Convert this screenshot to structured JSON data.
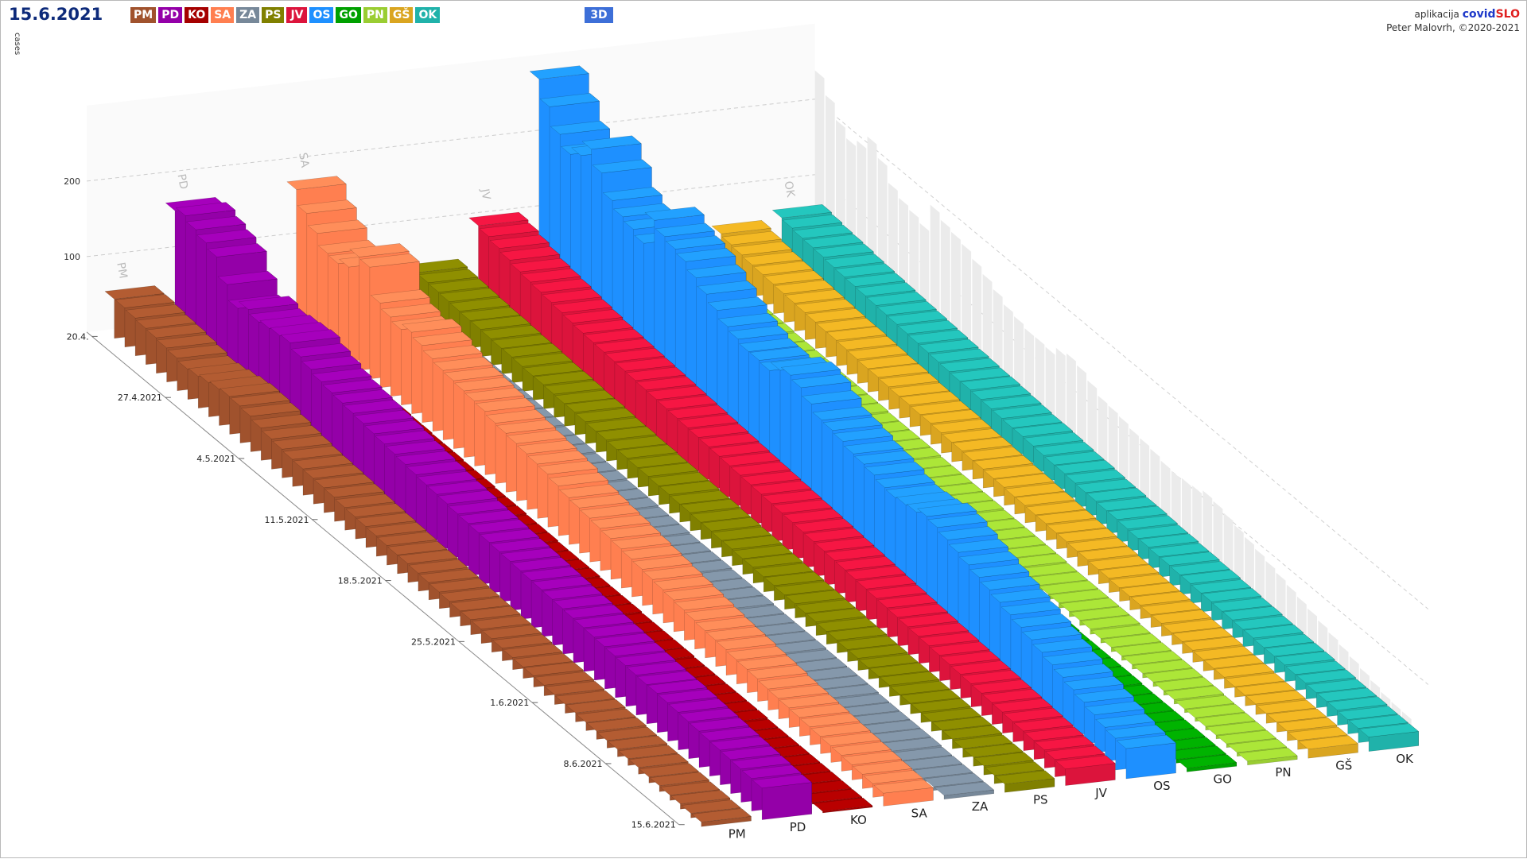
{
  "header": {
    "date": "15.6.2021",
    "view_toggle": "3D",
    "credit_prefix": "aplikacija",
    "credit_brand_a": "covid",
    "credit_brand_b": "SLO",
    "credit_author": "Peter Malovrh, ©2020-2021"
  },
  "legend": [
    {
      "code": "PM",
      "color": "#a0522d"
    },
    {
      "code": "PD",
      "color": "#9400a8"
    },
    {
      "code": "KO",
      "color": "#a50000"
    },
    {
      "code": "SA",
      "color": "#ff7f50"
    },
    {
      "code": "ZA",
      "color": "#778899"
    },
    {
      "code": "PS",
      "color": "#808000"
    },
    {
      "code": "JV",
      "color": "#dc143c"
    },
    {
      "code": "OS",
      "color": "#1e90ff"
    },
    {
      "code": "GO",
      "color": "#00a000"
    },
    {
      "code": "PN",
      "color": "#9acd32"
    },
    {
      "code": "GŠ",
      "color": "#daa520"
    },
    {
      "code": "OK",
      "color": "#20b2aa"
    }
  ],
  "chart_data": {
    "type": "bar3d",
    "ylabel": "cases",
    "yticks": [
      100,
      200
    ],
    "date_labels": [
      "20.4.",
      "27.4.2021",
      "4.5.2021",
      "11.5.2021",
      "18.5.2021",
      "25.5.2021",
      "1.6.2021",
      "8.6.2021",
      "15.6.2021"
    ],
    "start_date": "20.4.2021",
    "end_date": "15.6.2021",
    "days": 57,
    "back_labels": [
      "PM",
      "PD",
      "SA",
      "JV",
      "OK"
    ],
    "series": [
      {
        "name": "PM",
        "values": [
          52,
          52,
          50,
          48,
          47,
          45,
          43,
          40,
          42,
          45,
          48,
          50,
          49,
          47,
          43,
          40,
          38,
          36,
          35,
          34,
          33,
          32,
          30,
          29,
          28,
          27,
          26,
          25,
          25,
          24,
          23,
          22,
          21,
          20,
          20,
          19,
          18,
          17,
          16,
          15,
          15,
          14,
          13,
          12,
          12,
          11,
          11,
          10,
          10,
          9,
          9,
          8,
          8,
          7,
          7,
          6,
          6
        ]
      },
      {
        "name": "PD",
        "values": [
          160,
          165,
          158,
          152,
          145,
          120,
          100,
          110,
          105,
          108,
          110,
          112,
          105,
          100,
          95,
          92,
          90,
          88,
          86,
          84,
          82,
          80,
          78,
          76,
          74,
          73,
          72,
          70,
          69,
          68,
          67,
          66,
          65,
          64,
          63,
          62,
          61,
          60,
          59,
          58,
          57,
          56,
          55,
          54,
          53,
          52,
          52,
          51,
          50,
          49,
          48,
          47,
          46,
          45,
          44,
          43,
          42
        ]
      },
      {
        "name": "KO",
        "values": [
          22,
          20,
          19,
          18,
          17,
          16,
          15,
          14,
          14,
          13,
          13,
          12,
          12,
          11,
          11,
          10,
          10,
          10,
          9,
          9,
          9,
          8,
          8,
          8,
          7,
          7,
          7,
          6,
          6,
          6,
          6,
          5,
          5,
          5,
          5,
          4,
          4,
          4,
          4,
          4,
          3,
          3,
          3,
          3,
          3,
          3,
          3,
          2,
          2,
          2,
          2,
          2,
          2,
          2,
          2,
          2,
          2
        ]
      },
      {
        "name": "SA",
        "values": [
          170,
          150,
          135,
          120,
          118,
          125,
          150,
          148,
          112,
          105,
          100,
          108,
          102,
          96,
          92,
          90,
          88,
          86,
          84,
          80,
          78,
          76,
          74,
          72,
          70,
          66,
          62,
          60,
          58,
          56,
          54,
          52,
          50,
          48,
          46,
          44,
          42,
          40,
          38,
          36,
          35,
          34,
          32,
          31,
          30,
          28,
          27,
          26,
          25,
          24,
          23,
          22,
          21,
          20,
          19,
          18,
          17
        ]
      },
      {
        "name": "ZA",
        "values": [
          22,
          21,
          20,
          20,
          19,
          19,
          18,
          18,
          17,
          17,
          16,
          16,
          16,
          15,
          15,
          15,
          14,
          14,
          14,
          13,
          13,
          13,
          12,
          12,
          12,
          11,
          11,
          11,
          10,
          10,
          10,
          10,
          9,
          9,
          9,
          9,
          8,
          8,
          8,
          8,
          8,
          7,
          7,
          7,
          7,
          7,
          6,
          6,
          6,
          6,
          6,
          6,
          5,
          5,
          5,
          5,
          5
        ]
      },
      {
        "name": "PS",
        "values": [
          42,
          40,
          39,
          38,
          37,
          36,
          36,
          35,
          34,
          34,
          33,
          32,
          32,
          31,
          30,
          30,
          29,
          28,
          28,
          27,
          27,
          26,
          26,
          25,
          25,
          24,
          24,
          23,
          23,
          22,
          22,
          21,
          21,
          20,
          20,
          19,
          19,
          18,
          18,
          17,
          17,
          16,
          16,
          15,
          15,
          15,
          14,
          14,
          14,
          13,
          13,
          13,
          12,
          12,
          12,
          11,
          11
        ]
      },
      {
        "name": "JV",
        "values": [
          95,
          92,
          88,
          84,
          80,
          78,
          76,
          74,
          72,
          70,
          68,
          67,
          66,
          65,
          64,
          63,
          62,
          61,
          60,
          59,
          58,
          57,
          56,
          55,
          54,
          53,
          52,
          51,
          50,
          49,
          48,
          47,
          46,
          45,
          44,
          43,
          42,
          41,
          40,
          39,
          38,
          37,
          36,
          35,
          34,
          33,
          32,
          31,
          30,
          29,
          28,
          27,
          26,
          25,
          24,
          23,
          22
        ]
      },
      {
        "name": "OS",
        "values": [
          280,
          255,
          230,
          215,
          225,
          245,
          225,
          200,
          190,
          185,
          178,
          220,
          210,
          205,
          200,
          190,
          180,
          170,
          160,
          155,
          150,
          150,
          148,
          160,
          165,
          160,
          150,
          140,
          138,
          135,
          130,
          128,
          125,
          120,
          118,
          120,
          122,
          128,
          125,
          120,
          115,
          110,
          105,
          100,
          95,
          90,
          85,
          80,
          75,
          70,
          65,
          60,
          55,
          50,
          45,
          42,
          40
        ]
      },
      {
        "name": "GO",
        "values": [
          18,
          17,
          17,
          16,
          16,
          15,
          15,
          15,
          14,
          14,
          14,
          13,
          13,
          13,
          12,
          12,
          12,
          12,
          11,
          11,
          11,
          11,
          10,
          10,
          10,
          10,
          9,
          9,
          9,
          9,
          9,
          8,
          8,
          8,
          8,
          8,
          7,
          7,
          7,
          7,
          7,
          7,
          6,
          6,
          6,
          6,
          6,
          6,
          5,
          5,
          5,
          5,
          5,
          5,
          5,
          5,
          5
        ]
      },
      {
        "name": "PN",
        "values": [
          15,
          15,
          14,
          14,
          14,
          13,
          13,
          13,
          13,
          12,
          12,
          12,
          12,
          11,
          11,
          11,
          11,
          11,
          10,
          10,
          10,
          10,
          10,
          9,
          9,
          9,
          9,
          9,
          9,
          8,
          8,
          8,
          8,
          8,
          8,
          7,
          7,
          7,
          7,
          7,
          7,
          7,
          6,
          6,
          6,
          6,
          6,
          6,
          6,
          6,
          5,
          5,
          5,
          5,
          5,
          5,
          5
        ]
      },
      {
        "name": "GŠ",
        "values": [
          48,
          45,
          43,
          41,
          40,
          39,
          38,
          37,
          36,
          35,
          34,
          34,
          33,
          32,
          31,
          31,
          30,
          29,
          29,
          28,
          28,
          27,
          26,
          26,
          25,
          25,
          24,
          24,
          23,
          23,
          22,
          22,
          21,
          21,
          20,
          20,
          19,
          19,
          18,
          18,
          18,
          17,
          17,
          16,
          16,
          16,
          15,
          15,
          15,
          14,
          14,
          14,
          13,
          13,
          13,
          12,
          12
        ]
      },
      {
        "name": "OK",
        "values": [
          60,
          58,
          56,
          55,
          54,
          52,
          51,
          50,
          49,
          48,
          47,
          46,
          45,
          44,
          43,
          42,
          41,
          40,
          40,
          39,
          38,
          37,
          36,
          36,
          35,
          34,
          33,
          33,
          32,
          31,
          31,
          30,
          30,
          29,
          28,
          28,
          27,
          27,
          26,
          26,
          25,
          25,
          24,
          24,
          23,
          23,
          22,
          22,
          22,
          21,
          21,
          20,
          20,
          20,
          19,
          19,
          19
        ]
      }
    ]
  }
}
